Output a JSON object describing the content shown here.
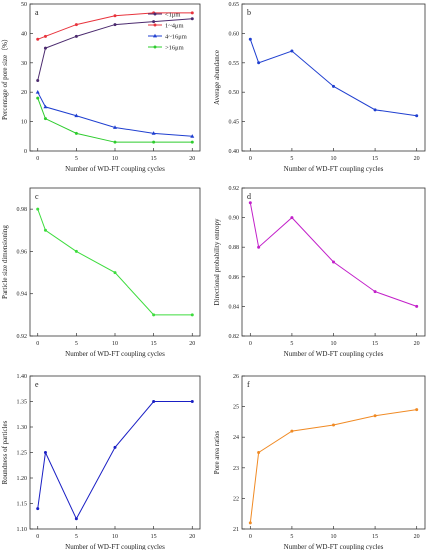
{
  "chart_data": [
    {
      "type": "line",
      "panel_label": "a",
      "xlabel": "Number of  WD-FT  coupling cycles",
      "ylabel": "Percentage of pore size（%）",
      "x": [
        0,
        1,
        5,
        10,
        15,
        20
      ],
      "x_ticks": [
        0,
        5,
        10,
        15,
        20
      ],
      "xlim": [
        -1,
        21
      ],
      "ylim": [
        0,
        50
      ],
      "y_ticks": [
        0,
        10,
        20,
        30,
        40,
        50
      ],
      "legend": "top-right",
      "series": [
        {
          "name": "<1μm",
          "color": "#4b2a6e",
          "marker": "circle",
          "values": [
            24,
            35,
            39,
            43,
            44,
            45
          ]
        },
        {
          "name": "1~4μm",
          "color": "#e8333c",
          "marker": "circle",
          "values": [
            38,
            39,
            43,
            46,
            47,
            47
          ]
        },
        {
          "name": "4~16μm",
          "color": "#1f3fd0",
          "marker": "triangle",
          "values": [
            20,
            15,
            12,
            8,
            6,
            5
          ]
        },
        {
          "name": ">16μm",
          "color": "#2ecc2e",
          "marker": "circle",
          "values": [
            18,
            11,
            6,
            3,
            3,
            3
          ]
        }
      ]
    },
    {
      "type": "line",
      "panel_label": "b",
      "xlabel": "Number of  WD-FT  coupling cycles",
      "ylabel": "Average abundance",
      "x": [
        0,
        1,
        5,
        10,
        15,
        20
      ],
      "x_ticks": [
        0,
        5,
        10,
        15,
        20
      ],
      "xlim": [
        -1,
        21
      ],
      "ylim": [
        0.4,
        0.65
      ],
      "y_ticks": [
        0.4,
        0.45,
        0.5,
        0.55,
        0.6,
        0.65
      ],
      "y_decimals": 2,
      "series": [
        {
          "color": "#1f3fd0",
          "marker": "circle",
          "values": [
            0.59,
            0.55,
            0.57,
            0.51,
            0.47,
            0.46
          ]
        }
      ]
    },
    {
      "type": "line",
      "panel_label": "c",
      "xlabel": "Number of  WD-FT  coupling cycles",
      "ylabel": "Particle size dimensioning",
      "x": [
        0,
        1,
        5,
        10,
        15,
        20
      ],
      "x_ticks": [
        0,
        5,
        10,
        15,
        20
      ],
      "xlim": [
        -1,
        21
      ],
      "ylim": [
        0.92,
        0.99
      ],
      "y_ticks": [
        0.92,
        0.94,
        0.96,
        0.98
      ],
      "y_decimals": 2,
      "series": [
        {
          "color": "#3ddc3d",
          "marker": "circle",
          "values": [
            0.98,
            0.97,
            0.96,
            0.95,
            0.93,
            0.93
          ]
        }
      ]
    },
    {
      "type": "line",
      "panel_label": "d",
      "xlabel": "Number of  WD-FT  coupling cycles",
      "ylabel": "Directional probability entropy",
      "x": [
        0,
        1,
        5,
        10,
        15,
        20
      ],
      "x_ticks": [
        0,
        5,
        10,
        15,
        20
      ],
      "xlim": [
        -1,
        21
      ],
      "ylim": [
        0.82,
        0.92
      ],
      "y_ticks": [
        0.82,
        0.84,
        0.86,
        0.88,
        0.9,
        0.92
      ],
      "y_decimals": 2,
      "series": [
        {
          "color": "#c21fc9",
          "marker": "circle",
          "values": [
            0.91,
            0.88,
            0.9,
            0.87,
            0.85,
            0.84
          ]
        }
      ]
    },
    {
      "type": "line",
      "panel_label": "e",
      "xlabel": "Number of  WD-FT  coupling cycles",
      "ylabel": "Roundness of particles",
      "x": [
        0,
        1,
        5,
        10,
        15,
        20
      ],
      "x_ticks": [
        0,
        5,
        10,
        15,
        20
      ],
      "xlim": [
        -1,
        21
      ],
      "ylim": [
        1.1,
        1.4
      ],
      "y_ticks": [
        1.1,
        1.15,
        1.2,
        1.25,
        1.3,
        1.35,
        1.4
      ],
      "y_decimals": 2,
      "series": [
        {
          "color": "#1a1fc4",
          "marker": "circle",
          "values": [
            1.14,
            1.25,
            1.12,
            1.26,
            1.35,
            1.35
          ]
        }
      ]
    },
    {
      "type": "line",
      "panel_label": "f",
      "xlabel": "Number of  WD-FT  coupling cycles",
      "ylabel": "Pore area ratios",
      "x": [
        0,
        1,
        5,
        10,
        15,
        20
      ],
      "x_ticks": [
        0,
        5,
        10,
        15,
        20
      ],
      "xlim": [
        -1,
        21
      ],
      "ylim": [
        21,
        26
      ],
      "y_ticks": [
        21,
        22,
        23,
        24,
        25,
        26
      ],
      "y_decimals": 0,
      "series": [
        {
          "color": "#f08a24",
          "marker": "circle",
          "values": [
            21.2,
            23.5,
            24.2,
            24.4,
            24.7,
            24.9
          ]
        }
      ]
    }
  ]
}
